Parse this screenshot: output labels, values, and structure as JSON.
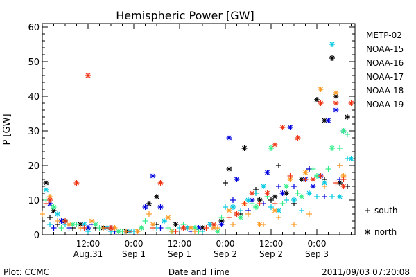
{
  "footer": {
    "left": "Plot: CCMC",
    "right": "2011/09/03 07:20:08"
  },
  "chart_data": {
    "type": "scatter",
    "title": "Hemispheric Power [GW]",
    "xlabel": "Date and Time",
    "ylabel": "P [GW]",
    "xlim": [
      0,
      60
    ],
    "ylim": [
      0,
      61
    ],
    "y_ticks": [
      0,
      10,
      20,
      30,
      40,
      50,
      60
    ],
    "x_ticks": [
      {
        "x": 12,
        "top": "12:00",
        "bottom": "Aug.31"
      },
      {
        "x": 24,
        "top": "0:00",
        "bottom": "Sep 1"
      },
      {
        "x": 36,
        "top": "12:00",
        "bottom": "Sep 1"
      },
      {
        "x": 48,
        "top": "0:00",
        "bottom": "Sep 2"
      },
      {
        "x": 60,
        "top": "12:00",
        "bottom": "Sep 2"
      },
      {
        "x": 72,
        "top": "0:00",
        "bottom": "Sep 3"
      }
    ],
    "x_unit": "hours since 2011/08/31 00:00",
    "grid": false,
    "legend_position": "right",
    "marker_legend": [
      {
        "symbol": "+",
        "label": "south"
      },
      {
        "symbol": "*",
        "label": "north"
      }
    ],
    "series": [
      {
        "name": "METP-02",
        "color": "#000000",
        "south": [
          [
            2,
            5
          ],
          [
            4,
            3
          ],
          [
            8,
            2
          ],
          [
            14,
            2
          ],
          [
            20,
            1
          ],
          [
            26,
            2
          ],
          [
            30,
            3
          ],
          [
            38,
            2
          ],
          [
            44,
            3
          ],
          [
            48,
            15
          ],
          [
            52,
            6
          ],
          [
            56,
            13
          ],
          [
            60,
            10
          ],
          [
            62,
            20
          ],
          [
            66,
            9
          ],
          [
            70,
            19
          ],
          [
            74,
            16
          ],
          [
            78,
            20
          ],
          [
            80,
            14
          ]
        ],
        "north": [
          [
            1,
            15
          ],
          [
            3,
            7
          ],
          [
            6,
            4
          ],
          [
            10,
            3
          ],
          [
            16,
            2
          ],
          [
            22,
            1
          ],
          [
            28,
            9
          ],
          [
            30,
            11
          ],
          [
            35,
            3
          ],
          [
            42,
            2
          ],
          [
            47,
            4
          ],
          [
            49,
            19
          ],
          [
            53,
            25
          ],
          [
            57,
            10
          ],
          [
            61,
            11
          ],
          [
            64,
            12
          ],
          [
            68,
            16
          ],
          [
            72,
            39
          ],
          [
            74,
            33
          ],
          [
            76,
            51
          ],
          [
            77,
            40
          ],
          [
            78,
            15
          ],
          [
            80,
            34
          ]
        ]
      },
      {
        "name": "NOAA-15",
        "color": "#0000dd",
        "south": [
          [
            3,
            2
          ],
          [
            7,
            2
          ],
          [
            13,
            3
          ],
          [
            19,
            1
          ],
          [
            25,
            1
          ],
          [
            31,
            2
          ],
          [
            39,
            1
          ],
          [
            45,
            2
          ],
          [
            50,
            10
          ],
          [
            54,
            7
          ],
          [
            58,
            9
          ],
          [
            62,
            14
          ],
          [
            66,
            14
          ],
          [
            70,
            19
          ],
          [
            74,
            11
          ],
          [
            78,
            16
          ]
        ],
        "north": [
          [
            2,
            9
          ],
          [
            5,
            4
          ],
          [
            12,
            2
          ],
          [
            18,
            2
          ],
          [
            27,
            8
          ],
          [
            29,
            17
          ],
          [
            31,
            8
          ],
          [
            41,
            2
          ],
          [
            47,
            3
          ],
          [
            49,
            28
          ],
          [
            51,
            16
          ],
          [
            55,
            10
          ],
          [
            59,
            18
          ],
          [
            63,
            12
          ],
          [
            65,
            31
          ],
          [
            69,
            16
          ],
          [
            71,
            14
          ],
          [
            73,
            17
          ],
          [
            75,
            33
          ],
          [
            77,
            36
          ],
          [
            79,
            30
          ]
        ]
      },
      {
        "name": "NOAA-16",
        "color": "#00c8e0",
        "south": [
          [
            2,
            3
          ],
          [
            6,
            3
          ],
          [
            12,
            1
          ],
          [
            18,
            1
          ],
          [
            24,
            1
          ],
          [
            30,
            2
          ],
          [
            36,
            2
          ],
          [
            42,
            1
          ],
          [
            48,
            8
          ],
          [
            52,
            7
          ],
          [
            56,
            12
          ],
          [
            60,
            8
          ],
          [
            64,
            10
          ],
          [
            68,
            7
          ],
          [
            72,
            11
          ],
          [
            76,
            11
          ],
          [
            80,
            22
          ]
        ],
        "north": [
          [
            1,
            13
          ],
          [
            4,
            6
          ],
          [
            11,
            3
          ],
          [
            17,
            2
          ],
          [
            23,
            1
          ],
          [
            32,
            4
          ],
          [
            38,
            2
          ],
          [
            44,
            3
          ],
          [
            50,
            8
          ],
          [
            54,
            10
          ],
          [
            58,
            14
          ],
          [
            62,
            7
          ],
          [
            66,
            10
          ],
          [
            70,
            12
          ],
          [
            74,
            15
          ],
          [
            76,
            55
          ],
          [
            78,
            11
          ],
          [
            81,
            22
          ]
        ]
      },
      {
        "name": "NOAA-17",
        "color": "#33ee88",
        "south": [
          [
            1,
            10
          ],
          [
            5,
            2
          ],
          [
            9,
            3
          ],
          [
            15,
            2
          ],
          [
            21,
            1
          ],
          [
            27,
            4
          ],
          [
            33,
            2
          ],
          [
            37,
            3
          ],
          [
            41,
            1
          ],
          [
            47,
            5
          ],
          [
            51,
            6
          ],
          [
            55,
            9
          ],
          [
            59,
            11
          ],
          [
            63,
            9
          ],
          [
            67,
            12
          ],
          [
            71,
            19
          ],
          [
            75,
            19
          ],
          [
            78,
            25
          ],
          [
            80,
            29
          ]
        ],
        "north": [
          [
            3,
            8
          ],
          [
            8,
            3
          ],
          [
            14,
            3
          ],
          [
            20,
            1
          ],
          [
            26,
            2
          ],
          [
            34,
            1
          ],
          [
            40,
            2
          ],
          [
            46,
            1
          ],
          [
            52,
            5
          ],
          [
            56,
            8
          ],
          [
            60,
            25
          ],
          [
            64,
            14
          ],
          [
            68,
            11
          ],
          [
            72,
            17
          ],
          [
            76,
            25
          ],
          [
            79,
            30
          ]
        ]
      },
      {
        "name": "NOAA-18",
        "color": "#ff9922",
        "south": [
          [
            0,
            6
          ],
          [
            4,
            4
          ],
          [
            10,
            2
          ],
          [
            16,
            2
          ],
          [
            22,
            1
          ],
          [
            28,
            6
          ],
          [
            34,
            1
          ],
          [
            40,
            1
          ],
          [
            46,
            2
          ],
          [
            50,
            3
          ],
          [
            54,
            6
          ],
          [
            58,
            3
          ],
          [
            62,
            5
          ],
          [
            66,
            3
          ],
          [
            70,
            6
          ],
          [
            74,
            14
          ],
          [
            78,
            20
          ]
        ],
        "north": [
          [
            2,
            11
          ],
          [
            7,
            3
          ],
          [
            13,
            4
          ],
          [
            19,
            2
          ],
          [
            25,
            1
          ],
          [
            29,
            3
          ],
          [
            33,
            5
          ],
          [
            39,
            2
          ],
          [
            45,
            2
          ],
          [
            49,
            7
          ],
          [
            53,
            9
          ],
          [
            57,
            3
          ],
          [
            61,
            7
          ],
          [
            65,
            16
          ],
          [
            69,
            18
          ],
          [
            73,
            42
          ],
          [
            77,
            41
          ],
          [
            79,
            17
          ]
        ]
      },
      {
        "name": "NOAA-19",
        "color": "#ee3311",
        "south": [
          [
            1,
            9
          ],
          [
            6,
            4
          ],
          [
            11,
            2
          ],
          [
            17,
            2
          ],
          [
            23,
            1
          ],
          [
            29,
            2
          ],
          [
            35,
            1
          ],
          [
            43,
            2
          ],
          [
            49,
            5
          ],
          [
            53,
            9
          ],
          [
            57,
            9
          ],
          [
            61,
            9
          ],
          [
            65,
            17
          ],
          [
            69,
            16
          ],
          [
            73,
            17
          ],
          [
            77,
            15
          ],
          [
            79,
            16
          ]
        ],
        "north": [
          [
            2,
            10
          ],
          [
            9,
            15
          ],
          [
            12,
            46
          ],
          [
            18,
            2
          ],
          [
            31,
            15
          ],
          [
            37,
            2
          ],
          [
            45,
            3
          ],
          [
            51,
            6
          ],
          [
            55,
            12
          ],
          [
            59,
            12
          ],
          [
            61,
            26
          ],
          [
            63,
            31
          ],
          [
            67,
            28
          ],
          [
            71,
            16
          ],
          [
            73,
            38
          ],
          [
            77,
            38
          ],
          [
            79,
            14
          ],
          [
            81,
            38
          ]
        ]
      }
    ]
  }
}
